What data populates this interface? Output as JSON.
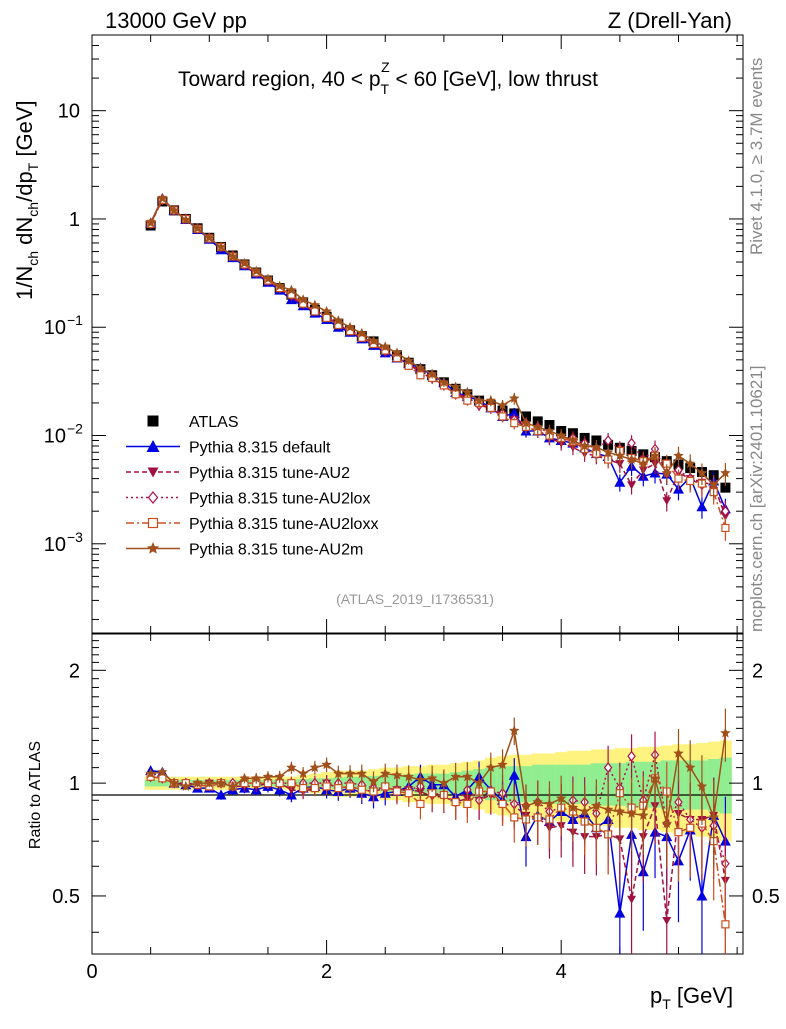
{
  "header": {
    "left": "13000 GeV pp",
    "right": "Z (Drell-Yan)"
  },
  "side": {
    "rivet": "Rivet 4.1.0, ≥ 3.7M events",
    "mcplots": "mcplots.cern.ch [arXiv:2401.10621]"
  },
  "main": {
    "title": "Toward region, 40 < p_T^Z < 60 [GeV], low thrust",
    "ylabel": "1/N_ch dN_ch/dp_T [GeV]",
    "analysis_id": "(ATLAS_2019_I1736531)",
    "ytick_labels": [
      "10^-3",
      "10^-2",
      "10^-1",
      "1",
      "10"
    ]
  },
  "ratio": {
    "ylabel": "Ratio to ATLAS",
    "ytick_labels": [
      "0.5",
      "1",
      "2"
    ]
  },
  "xaxis": {
    "label": "p_T [GeV]",
    "tick_labels": [
      "0",
      "2",
      "4"
    ]
  },
  "legend": [
    {
      "label": "ATLAS",
      "color": "#000000",
      "marker": "square",
      "dash": ""
    },
    {
      "label": "Pythia 8.315 default",
      "color": "#0000e0",
      "marker": "triangle-up",
      "dash": ""
    },
    {
      "label": "Pythia 8.315 tune-AU2",
      "color": "#a01040",
      "marker": "triangle-down",
      "dash": "5,3"
    },
    {
      "label": "Pythia 8.315 tune-AU2lox",
      "color": "#b01050",
      "marker": "diamond-open",
      "dash": "2,3"
    },
    {
      "label": "Pythia 8.315 tune-AU2loxx",
      "color": "#c85020",
      "marker": "square-open",
      "dash": "8,3,2,3"
    },
    {
      "label": "Pythia 8.315 tune-AU2m",
      "color": "#a0501a",
      "marker": "star",
      "dash": ""
    }
  ],
  "chart_data": [
    {
      "type": "scatter",
      "panel": "main",
      "title": "Toward region, 40 < p_T^Z < 60 [GeV], low thrust",
      "xlabel": "p_T [GeV]",
      "ylabel": "1/N_ch dN_ch/dp_T [GeV]",
      "xlim": [
        0,
        5.55
      ],
      "ylim": [
        0.00015,
        50
      ],
      "yscale": "log",
      "x": [
        0.5,
        0.6,
        0.7,
        0.8,
        0.9,
        1.0,
        1.1,
        1.2,
        1.3,
        1.4,
        1.5,
        1.6,
        1.7,
        1.8,
        1.9,
        2.0,
        2.1,
        2.2,
        2.3,
        2.4,
        2.5,
        2.6,
        2.7,
        2.8,
        2.9,
        3.0,
        3.1,
        3.2,
        3.3,
        3.4,
        3.5,
        3.6,
        3.7,
        3.8,
        3.9,
        4.0,
        4.1,
        4.2,
        4.3,
        4.4,
        4.5,
        4.6,
        4.7,
        4.8,
        4.9,
        5.0,
        5.1,
        5.2,
        5.3,
        5.4
      ],
      "series": [
        {
          "name": "ATLAS",
          "values": [
            0.87,
            1.45,
            1.2,
            1.0,
            0.82,
            0.67,
            0.55,
            0.46,
            0.38,
            0.32,
            0.27,
            0.23,
            0.2,
            0.17,
            0.145,
            0.125,
            0.108,
            0.094,
            0.083,
            0.074,
            0.062,
            0.055,
            0.047,
            0.041,
            0.036,
            0.031,
            0.027,
            0.024,
            0.021,
            0.019,
            0.017,
            0.016,
            0.015,
            0.0135,
            0.0125,
            0.011,
            0.0105,
            0.0095,
            0.009,
            0.0082,
            0.0077,
            0.0072,
            0.0067,
            0.0063,
            0.0058,
            0.0054,
            0.005,
            0.0046,
            0.0043,
            0.0033
          ]
        },
        {
          "name": "Pythia 8.315 default",
          "values": [
            0.92,
            1.55,
            1.2,
            0.99,
            0.8,
            0.65,
            0.52,
            0.44,
            0.37,
            0.31,
            0.26,
            0.22,
            0.18,
            0.158,
            0.135,
            0.118,
            0.1,
            0.09,
            0.078,
            0.068,
            0.058,
            0.052,
            0.046,
            0.042,
            0.036,
            0.031,
            0.025,
            0.023,
            0.021,
            0.018,
            0.015,
            0.016,
            0.011,
            0.011,
            0.0095,
            0.009,
            0.0085,
            0.0077,
            0.0068,
            0.0064,
            0.0037,
            0.0052,
            0.0042,
            0.0045,
            0.0044,
            0.0032,
            0.0041,
            0.0022,
            0.0038,
            0.0021
          ]
        },
        {
          "name": "Pythia 8.315 tune-AU2",
          "values": [
            0.9,
            1.5,
            1.2,
            1.0,
            0.81,
            0.67,
            0.55,
            0.45,
            0.37,
            0.31,
            0.27,
            0.23,
            0.19,
            0.16,
            0.14,
            0.125,
            0.105,
            0.092,
            0.08,
            0.07,
            0.06,
            0.053,
            0.045,
            0.039,
            0.033,
            0.029,
            0.024,
            0.022,
            0.019,
            0.018,
            0.015,
            0.014,
            0.012,
            0.011,
            0.0095,
            0.0085,
            0.0078,
            0.0068,
            0.0065,
            0.006,
            0.0055,
            0.0035,
            0.0048,
            0.0055,
            0.0025,
            0.0045,
            0.004,
            0.0037,
            0.0035,
            0.0018
          ]
        },
        {
          "name": "Pythia 8.315 tune-AU2lox",
          "values": [
            0.9,
            1.5,
            1.2,
            1.0,
            0.81,
            0.67,
            0.55,
            0.46,
            0.38,
            0.32,
            0.27,
            0.23,
            0.2,
            0.17,
            0.145,
            0.125,
            0.108,
            0.094,
            0.082,
            0.072,
            0.06,
            0.053,
            0.045,
            0.04,
            0.034,
            0.029,
            0.024,
            0.023,
            0.019,
            0.018,
            0.016,
            0.014,
            0.013,
            0.012,
            0.0105,
            0.0095,
            0.0095,
            0.0085,
            0.0075,
            0.009,
            0.0075,
            0.0085,
            0.006,
            0.0075,
            0.0045,
            0.0048,
            0.004,
            0.0035,
            0.0033,
            0.002
          ]
        },
        {
          "name": "Pythia 8.315 tune-AU2loxx",
          "values": [
            0.9,
            1.5,
            1.2,
            1.0,
            0.81,
            0.66,
            0.55,
            0.45,
            0.38,
            0.32,
            0.27,
            0.23,
            0.2,
            0.165,
            0.14,
            0.122,
            0.105,
            0.092,
            0.08,
            0.07,
            0.061,
            0.052,
            0.044,
            0.036,
            0.034,
            0.029,
            0.024,
            0.021,
            0.02,
            0.018,
            0.015,
            0.013,
            0.012,
            0.011,
            0.01,
            0.0095,
            0.0088,
            0.0075,
            0.0068,
            0.006,
            0.0072,
            0.0062,
            0.0058,
            0.0065,
            0.0055,
            0.004,
            0.0038,
            0.0036,
            0.003,
            0.0014
          ]
        },
        {
          "name": "Pythia 8.315 tune-AU2m",
          "values": [
            0.92,
            1.55,
            1.2,
            0.98,
            0.82,
            0.67,
            0.55,
            0.45,
            0.39,
            0.33,
            0.28,
            0.24,
            0.22,
            0.18,
            0.16,
            0.14,
            0.115,
            0.1,
            0.088,
            0.075,
            0.066,
            0.058,
            0.049,
            0.042,
            0.037,
            0.031,
            0.028,
            0.025,
            0.021,
            0.021,
            0.019,
            0.022,
            0.013,
            0.012,
            0.011,
            0.01,
            0.009,
            0.008,
            0.0078,
            0.007,
            0.0065,
            0.006,
            0.0055,
            0.0065,
            0.0045,
            0.0065,
            0.0055,
            0.0045,
            0.0035,
            0.0045
          ]
        }
      ]
    },
    {
      "type": "scatter",
      "panel": "ratio",
      "xlabel": "p_T [GeV]",
      "ylabel": "Ratio to ATLAS",
      "xlim": [
        0,
        5.55
      ],
      "ylim": [
        0.35,
        2.5
      ],
      "yscale": "log",
      "reference": 1,
      "band_edges": [
        0.45,
        0.55,
        0.65,
        0.75,
        0.85,
        0.95,
        1.05,
        1.15,
        1.25,
        1.35,
        1.45,
        1.55,
        1.65,
        1.75,
        1.85,
        1.95,
        2.05,
        2.15,
        2.25,
        2.35,
        2.45,
        2.55,
        2.65,
        2.75,
        2.85,
        2.95,
        3.05,
        3.15,
        3.25,
        3.35,
        3.45,
        3.55,
        3.65,
        3.75,
        3.85,
        3.95,
        4.05,
        4.15,
        4.25,
        4.35,
        4.45,
        4.55,
        4.65,
        4.75,
        4.85,
        4.95,
        5.05,
        5.15,
        5.25,
        5.35,
        5.45
      ],
      "band_stat": [
        0.02,
        0.02,
        0.02,
        0.02,
        0.02,
        0.02,
        0.02,
        0.02,
        0.02,
        0.02,
        0.02,
        0.02,
        0.02,
        0.025,
        0.03,
        0.03,
        0.035,
        0.04,
        0.04,
        0.045,
        0.05,
        0.05,
        0.055,
        0.06,
        0.06,
        0.06,
        0.07,
        0.08,
        0.09,
        0.1,
        0.11,
        0.11,
        0.11,
        0.12,
        0.12,
        0.12,
        0.12,
        0.12,
        0.13,
        0.13,
        0.13,
        0.14,
        0.14,
        0.14,
        0.15,
        0.15,
        0.15,
        0.15,
        0.16,
        0.17
      ],
      "band_total": [
        0.04,
        0.04,
        0.04,
        0.04,
        0.04,
        0.04,
        0.04,
        0.04,
        0.04,
        0.04,
        0.04,
        0.04,
        0.04,
        0.05,
        0.06,
        0.07,
        0.08,
        0.08,
        0.08,
        0.09,
        0.1,
        0.1,
        0.11,
        0.11,
        0.12,
        0.12,
        0.13,
        0.14,
        0.15,
        0.17,
        0.18,
        0.19,
        0.19,
        0.2,
        0.2,
        0.21,
        0.22,
        0.22,
        0.23,
        0.23,
        0.24,
        0.24,
        0.25,
        0.25,
        0.26,
        0.27,
        0.27,
        0.28,
        0.29,
        0.3
      ],
      "x": [
        0.5,
        0.6,
        0.7,
        0.8,
        0.9,
        1.0,
        1.1,
        1.2,
        1.3,
        1.4,
        1.5,
        1.6,
        1.7,
        1.8,
        1.9,
        2.0,
        2.1,
        2.2,
        2.3,
        2.4,
        2.5,
        2.6,
        2.7,
        2.8,
        2.9,
        3.0,
        3.1,
        3.2,
        3.3,
        3.4,
        3.5,
        3.6,
        3.7,
        3.8,
        3.9,
        4.0,
        4.1,
        4.2,
        4.3,
        4.4,
        4.5,
        4.6,
        4.7,
        4.8,
        4.9,
        5.0,
        5.1,
        5.2,
        5.3,
        5.4
      ],
      "series": [
        {
          "name": "Pythia 8.315 default",
          "values": [
            1.08,
            1.07,
            1.0,
            0.99,
            0.97,
            0.97,
            0.93,
            0.96,
            0.97,
            0.96,
            0.98,
            0.96,
            0.93,
            0.97,
            0.98,
            0.96,
            0.95,
            0.97,
            0.94,
            0.92,
            0.94,
            0.95,
            0.98,
            1.04,
            0.99,
            0.99,
            0.92,
            0.96,
            1.04,
            0.96,
            0.9,
            1.05,
            0.72,
            0.82,
            0.79,
            0.84,
            0.8,
            0.83,
            0.76,
            0.8,
            0.45,
            0.73,
            0.58,
            0.74,
            0.72,
            0.62,
            0.75,
            0.5,
            0.82,
            0.7
          ]
        },
        {
          "name": "Pythia 8.315 tune-AU2",
          "values": [
            1.04,
            1.03,
            1.0,
            1.0,
            0.99,
            1.0,
            1.0,
            0.98,
            0.98,
            0.98,
            1.0,
            1.0,
            0.96,
            0.95,
            0.97,
            1.0,
            0.97,
            0.98,
            0.96,
            0.95,
            0.97,
            0.96,
            0.96,
            0.95,
            0.92,
            0.92,
            0.89,
            0.91,
            0.9,
            0.93,
            0.88,
            0.87,
            0.82,
            0.81,
            0.76,
            0.77,
            0.74,
            0.72,
            0.72,
            0.73,
            0.71,
            0.49,
            0.72,
            0.87,
            0.43,
            0.83,
            0.8,
            0.8,
            0.82,
            0.55
          ]
        },
        {
          "name": "Pythia 8.315 tune-AU2lox",
          "values": [
            1.04,
            1.03,
            1.0,
            1.0,
            0.99,
            1.0,
            1.0,
            1.0,
            1.0,
            1.0,
            1.0,
            1.0,
            1.0,
            1.0,
            1.0,
            1.0,
            1.0,
            1.0,
            0.99,
            0.97,
            0.97,
            0.96,
            0.96,
            0.98,
            0.94,
            0.93,
            0.89,
            0.96,
            0.9,
            0.95,
            0.94,
            0.88,
            0.87,
            0.89,
            0.84,
            0.86,
            0.9,
            0.89,
            0.83,
            1.1,
            0.97,
            1.18,
            0.9,
            1.19,
            0.78,
            0.89,
            0.8,
            0.76,
            0.77,
            0.61
          ]
        },
        {
          "name": "Pythia 8.315 tune-AU2loxx",
          "values": [
            1.04,
            1.03,
            1.0,
            1.0,
            0.99,
            0.98,
            1.0,
            0.98,
            1.0,
            1.0,
            1.0,
            1.0,
            1.0,
            0.97,
            0.97,
            0.98,
            0.97,
            0.98,
            0.96,
            0.95,
            0.98,
            0.95,
            0.94,
            0.88,
            0.94,
            0.93,
            0.89,
            0.88,
            0.95,
            0.95,
            0.88,
            0.81,
            0.8,
            0.81,
            0.8,
            0.86,
            0.84,
            0.79,
            0.76,
            0.73,
            0.94,
            0.86,
            0.87,
            1.03,
            0.95,
            0.74,
            0.76,
            0.78,
            0.7,
            0.42
          ]
        },
        {
          "name": "Pythia 8.315 tune-AU2m",
          "values": [
            1.06,
            1.07,
            1.0,
            0.98,
            1.0,
            1.0,
            1.0,
            0.98,
            1.03,
            1.03,
            1.04,
            1.04,
            1.1,
            1.06,
            1.1,
            1.12,
            1.06,
            1.06,
            1.06,
            1.01,
            1.06,
            1.05,
            1.04,
            1.02,
            1.03,
            1.0,
            1.04,
            1.04,
            1.0,
            1.1,
            1.12,
            1.38,
            0.87,
            0.89,
            0.88,
            0.91,
            0.86,
            0.84,
            0.87,
            0.85,
            0.84,
            0.83,
            0.82,
            1.03,
            0.78,
            1.2,
            1.1,
            0.98,
            0.81,
            1.36
          ]
        }
      ]
    }
  ]
}
